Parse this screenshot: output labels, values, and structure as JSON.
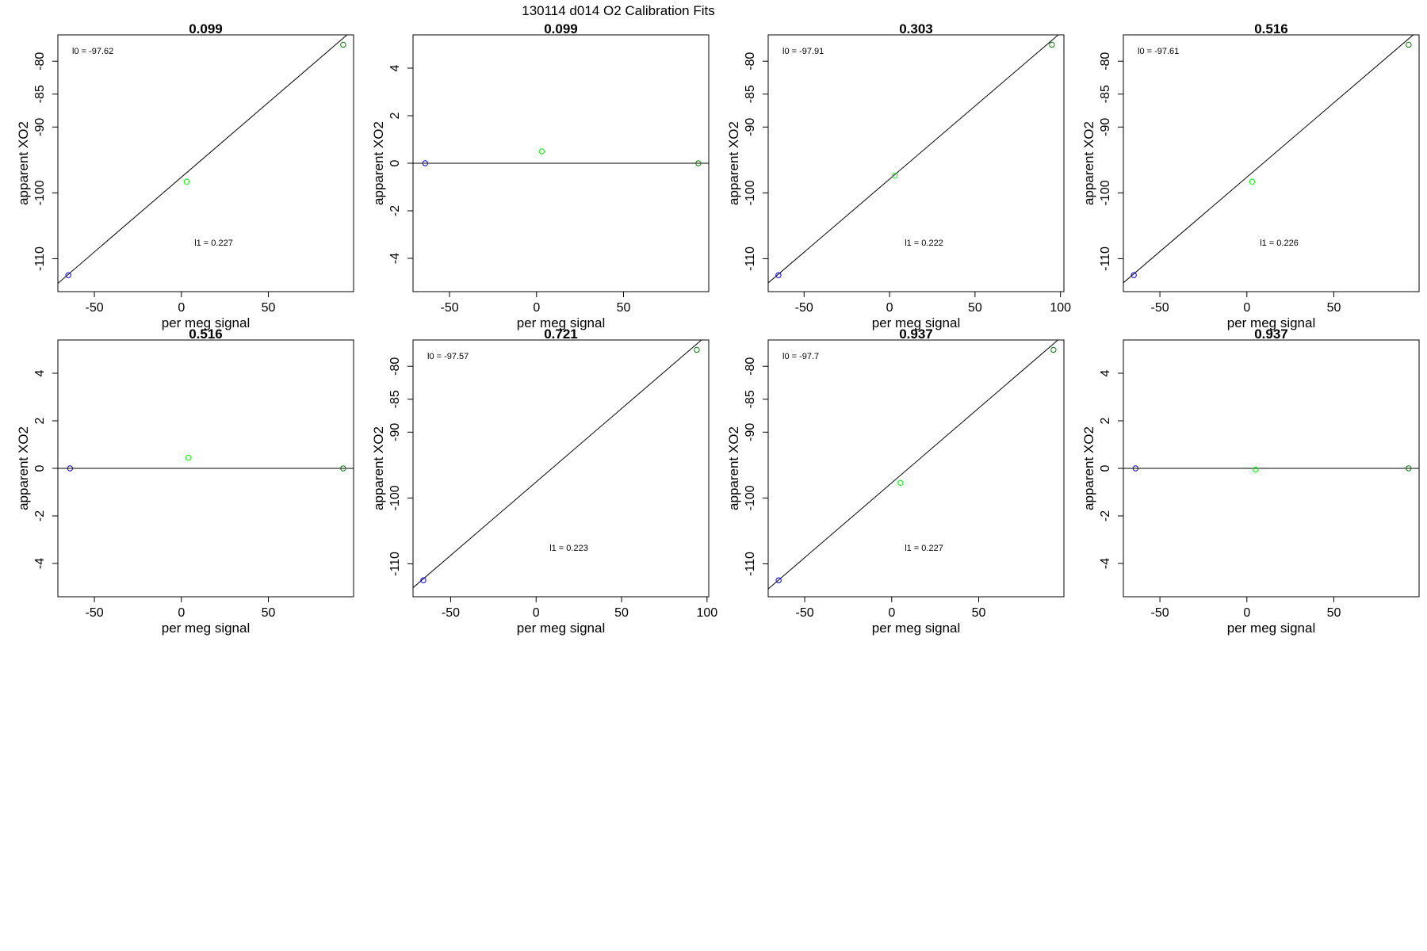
{
  "figure_title": "130114   d014   O2 Calibration Fits",
  "chart_data": [
    {
      "type": "scatter",
      "title": "0.099",
      "xlabel": "per meg signal",
      "ylabel": "apparent XO2",
      "xlim": [
        -71,
        99
      ],
      "ylim": [
        -115,
        -76
      ],
      "xticks": [
        "-50",
        "0",
        "50"
      ],
      "yticks": [
        "-110",
        "-100",
        "-90",
        "-85",
        "-80"
      ],
      "points": [
        {
          "x": -65,
          "y": -112.5,
          "color": "#0000ff"
        },
        {
          "x": 3,
          "y": -98.3,
          "color": "#00ff00"
        },
        {
          "x": 93,
          "y": -77.5,
          "color": "#008000"
        }
      ],
      "fit": {
        "intercept": -97.62,
        "slope": 0.227
      },
      "annotations": {
        "intercept_label": "l0 =  -97.62",
        "slope_label": "l1 =  0.227"
      }
    },
    {
      "type": "scatter",
      "title": "0.099",
      "xlabel": "per meg signal",
      "ylabel": "apparent XO2",
      "xlim": [
        -71,
        99
      ],
      "ylim": [
        -5.4,
        5.4
      ],
      "xticks": [
        "-50",
        "0",
        "50"
      ],
      "yticks": [
        "-4",
        "-2",
        "0",
        "2",
        "4"
      ],
      "points": [
        {
          "x": -64,
          "y": 0,
          "color": "#0000ff"
        },
        {
          "x": 3,
          "y": 0.5,
          "color": "#00ff00"
        },
        {
          "x": 93,
          "y": 0,
          "color": "#008000"
        }
      ],
      "fit": {
        "intercept": 0,
        "slope": 0
      },
      "annotations": {}
    },
    {
      "type": "scatter",
      "title": "0.303",
      "xlabel": "per meg signal",
      "ylabel": "apparent XO2",
      "xlim": [
        -71,
        102
      ],
      "ylim": [
        -115,
        -76
      ],
      "xticks": [
        "-50",
        "0",
        "50",
        "100"
      ],
      "yticks": [
        "-110",
        "-100",
        "-90",
        "-85",
        "-80"
      ],
      "points": [
        {
          "x": -65,
          "y": -112.5,
          "color": "#0000ff"
        },
        {
          "x": 3,
          "y": -97.4,
          "color": "#00ff00"
        },
        {
          "x": 95,
          "y": -77.5,
          "color": "#008000"
        }
      ],
      "fit": {
        "intercept": -97.91,
        "slope": 0.222
      },
      "annotations": {
        "intercept_label": "l0 =  -97.91",
        "slope_label": "l1 =  0.222"
      }
    },
    {
      "type": "scatter",
      "title": "0.516",
      "xlabel": "per meg signal",
      "ylabel": "apparent XO2",
      "xlim": [
        -71,
        99
      ],
      "ylim": [
        -115,
        -76
      ],
      "xticks": [
        "-50",
        "0",
        "50"
      ],
      "yticks": [
        "-110",
        "-100",
        "-90",
        "-85",
        "-80"
      ],
      "points": [
        {
          "x": -65,
          "y": -112.5,
          "color": "#0000ff"
        },
        {
          "x": 3,
          "y": -98.3,
          "color": "#00ff00"
        },
        {
          "x": 93,
          "y": -77.5,
          "color": "#008000"
        }
      ],
      "fit": {
        "intercept": -97.61,
        "slope": 0.226
      },
      "annotations": {
        "intercept_label": "l0 =  -97.61",
        "slope_label": "l1 =  0.226"
      }
    },
    {
      "type": "scatter",
      "title": "0.516",
      "xlabel": "per meg signal",
      "ylabel": "apparent XO2",
      "xlim": [
        -71,
        99
      ],
      "ylim": [
        -5.4,
        5.4
      ],
      "xticks": [
        "-50",
        "0",
        "50"
      ],
      "yticks": [
        "-4",
        "-2",
        "0",
        "2",
        "4"
      ],
      "points": [
        {
          "x": -64,
          "y": 0,
          "color": "#0000ff"
        },
        {
          "x": 4,
          "y": 0.45,
          "color": "#00ff00"
        },
        {
          "x": 93,
          "y": 0,
          "color": "#008000"
        }
      ],
      "fit": {
        "intercept": 0,
        "slope": 0
      },
      "annotations": {}
    },
    {
      "type": "scatter",
      "title": "0.721",
      "xlabel": "per meg signal",
      "ylabel": "apparent XO2",
      "xlim": [
        -72,
        101
      ],
      "ylim": [
        -115,
        -76
      ],
      "xticks": [
        "-50",
        "0",
        "50",
        "100"
      ],
      "yticks": [
        "-110",
        "-100",
        "-90",
        "-85",
        "-80"
      ],
      "points": [
        {
          "x": -66,
          "y": -112.5,
          "color": "#0000ff"
        },
        {
          "x": 94,
          "y": -77.5,
          "color": "#008000"
        }
      ],
      "fit": {
        "intercept": -97.57,
        "slope": 0.223
      },
      "annotations": {
        "intercept_label": "l0 =  -97.57",
        "slope_label": "l1 =  0.223"
      }
    },
    {
      "type": "scatter",
      "title": "0.937",
      "xlabel": "per meg signal",
      "ylabel": "apparent XO2",
      "xlim": [
        -71,
        99
      ],
      "ylim": [
        -115,
        -76
      ],
      "xticks": [
        "-50",
        "0",
        "50"
      ],
      "yticks": [
        "-110",
        "-100",
        "-90",
        "-85",
        "-80"
      ],
      "points": [
        {
          "x": -65,
          "y": -112.5,
          "color": "#0000ff"
        },
        {
          "x": 5,
          "y": -97.7,
          "color": "#00ff00"
        },
        {
          "x": 93,
          "y": -77.5,
          "color": "#008000"
        }
      ],
      "fit": {
        "intercept": -97.7,
        "slope": 0.227
      },
      "annotations": {
        "intercept_label": "l0 =  -97.7",
        "slope_label": "l1 =  0.227"
      }
    },
    {
      "type": "scatter",
      "title": "0.937",
      "xlabel": "per meg signal",
      "ylabel": "apparent XO2",
      "xlim": [
        -71,
        99
      ],
      "ylim": [
        -5.4,
        5.4
      ],
      "xticks": [
        "-50",
        "0",
        "50"
      ],
      "yticks": [
        "-4",
        "-2",
        "0",
        "2",
        "4"
      ],
      "points": [
        {
          "x": -64,
          "y": 0,
          "color": "#0000ff"
        },
        {
          "x": 5,
          "y": -0.05,
          "color": "#00ff00"
        },
        {
          "x": 93,
          "y": 0,
          "color": "#008000"
        }
      ],
      "fit": {
        "intercept": 0,
        "slope": 0
      },
      "annotations": {}
    }
  ]
}
